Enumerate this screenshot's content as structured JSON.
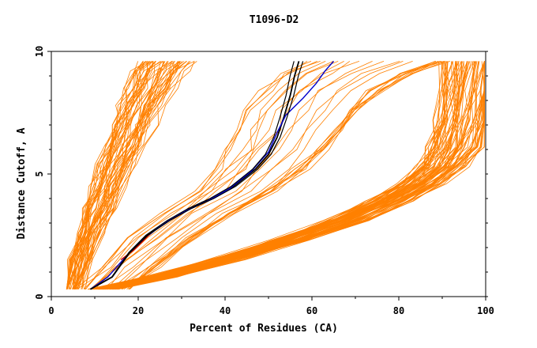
{
  "chart_data": {
    "type": "line",
    "title": "T1096-D2",
    "xlabel": "Percent of Residues (CA)",
    "ylabel": "Distance Cutoff, A",
    "xlim": [
      0,
      100
    ],
    "ylim": [
      0,
      10
    ],
    "x_ticks": [
      "0",
      "20",
      "40",
      "60",
      "80",
      "100"
    ],
    "y_ticks": [
      "0",
      "5",
      "10"
    ],
    "grid": false,
    "legend": "none",
    "background_color": "#ffffff",
    "colors": {
      "models": "#ff8000",
      "highlight_black": "#000000",
      "highlight_blue": "#0000cc",
      "highlight_red": "#cc0000"
    },
    "series": [
      {
        "group": "models-steep",
        "count": 55,
        "color": "#ff8000",
        "x": [
          5,
          7,
          9,
          11,
          13,
          15,
          17,
          19,
          21,
          23,
          25,
          27
        ],
        "y": [
          0.3,
          1.5,
          2.6,
          3.6,
          4.5,
          5.4,
          6.2,
          7.0,
          7.8,
          8.5,
          9.2,
          9.6
        ]
      },
      {
        "group": "models-mid",
        "count": 25,
        "color": "#ff8000",
        "x": [
          12,
          18,
          26,
          34,
          42,
          48,
          52,
          55,
          58,
          62,
          68,
          75
        ],
        "y": [
          0.3,
          1.2,
          2.4,
          3.4,
          4.3,
          5.2,
          6.0,
          6.8,
          7.6,
          8.4,
          9.1,
          9.6
        ]
      },
      {
        "group": "models-shallow",
        "count": 75,
        "color": "#ff8000",
        "x": [
          12,
          25,
          40,
          55,
          68,
          78,
          85,
          90,
          93,
          95,
          96,
          97
        ],
        "y": [
          0.3,
          0.8,
          1.5,
          2.3,
          3.1,
          3.9,
          4.6,
          5.3,
          6.1,
          7.2,
          8.4,
          9.6
        ]
      },
      {
        "name": "",
        "group": "highlight",
        "color": "#000000",
        "x": [
          9,
          14,
          18,
          22,
          27,
          32,
          37,
          42,
          47,
          50,
          52,
          53.5,
          55,
          56,
          57
        ],
        "y": [
          0.3,
          0.8,
          1.8,
          2.5,
          3.1,
          3.6,
          4.0,
          4.5,
          5.2,
          5.8,
          6.5,
          7.3,
          8.2,
          9.0,
          9.6
        ]
      },
      {
        "name": "",
        "group": "highlight",
        "color": "#0000cc",
        "x": [
          9,
          13,
          17,
          21,
          26,
          31,
          36,
          41,
          46,
          50,
          52,
          54,
          58,
          61,
          63,
          65
        ],
        "y": [
          0.3,
          0.8,
          1.6,
          2.3,
          3.0,
          3.5,
          3.9,
          4.4,
          5.1,
          5.9,
          6.7,
          7.4,
          8.1,
          8.7,
          9.2,
          9.6
        ]
      },
      {
        "name": "",
        "group": "highlight",
        "color": "#cc0000",
        "x": [
          16,
          19,
          23
        ],
        "y": [
          1.5,
          1.9,
          2.6
        ]
      }
    ]
  }
}
